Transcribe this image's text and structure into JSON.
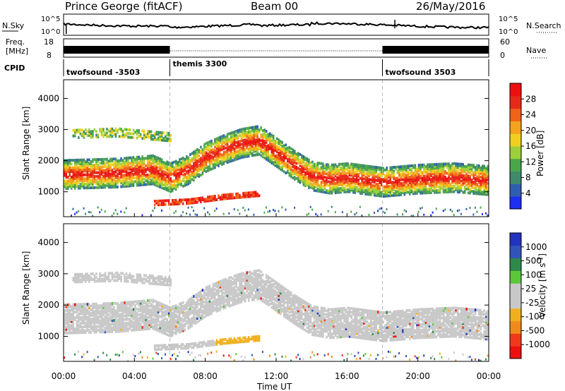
{
  "header": {
    "station": "Prince George (fitACF)",
    "beam": "Beam 00",
    "date": "26/May/2016"
  },
  "summary": {
    "nsky_label": "N.Sky",
    "nsearch_label": "N.Search",
    "freq_label_line1": "Freq.",
    "freq_label_line2": "[MHz]",
    "nave_label": "Nave",
    "cpid_label": "CPID",
    "nsky_ticks": [
      "10^5",
      "10^0"
    ],
    "nsearch_ticks": [
      "10^5",
      "10^0"
    ],
    "freq_ticks": [
      "18",
      "8"
    ],
    "nave_ticks": [
      "60",
      "0"
    ],
    "cpid_segments": [
      {
        "label": "twofsound -3503",
        "start_h": 0,
        "end_h": 6
      },
      {
        "label": "themis 3300",
        "start_h": 6,
        "end_h": 18
      },
      {
        "label": "twofsound 3503",
        "start_h": 18,
        "end_h": 24
      }
    ]
  },
  "chart_data": [
    {
      "type": "heatmap",
      "parameter": "Power",
      "ylabel": "Slant Range [km]",
      "ylim": [
        200,
        4600
      ],
      "yticks": [
        "1000",
        "2000",
        "3000",
        "4000"
      ],
      "xlim_hours": [
        0,
        24
      ],
      "colorbar_label": "Power [dB]",
      "colorbar_ticks": [
        "4",
        "8",
        "12",
        "16",
        "20",
        "24",
        "28"
      ],
      "colors": [
        "#1e2ff0",
        "#2f5fb0",
        "#3f8a6a",
        "#4aa64a",
        "#9ccf3a",
        "#f0cf1e",
        "#f5a21e",
        "#f0621a",
        "#e62a1a",
        "#ee1010"
      ],
      "echo_bands": [
        {
          "name": "main-band",
          "start_h": 0,
          "end_h": 24,
          "range_km": [
            [
              0,
              1600
            ],
            [
              3,
              1650
            ],
            [
              5,
              1750
            ],
            [
              6,
              1500
            ],
            [
              7,
              1750
            ],
            [
              8,
              2150
            ],
            [
              9,
              2400
            ],
            [
              10,
              2600
            ],
            [
              11,
              2700
            ],
            [
              12,
              2300
            ],
            [
              13,
              1900
            ],
            [
              14,
              1550
            ],
            [
              15,
              1450
            ],
            [
              16,
              1500
            ],
            [
              18,
              1350
            ],
            [
              20,
              1450
            ],
            [
              22,
              1500
            ],
            [
              24,
              1400
            ]
          ]
        },
        {
          "name": "lower-patch",
          "start_h": 5,
          "end_h": 11,
          "range_km": [
            [
              5,
              700
            ],
            [
              7,
              750
            ],
            [
              9,
              900
            ],
            [
              11,
              1000
            ]
          ]
        },
        {
          "name": "upper-band",
          "start_h": 0.5,
          "end_h": 6,
          "range_km": [
            [
              0.5,
              2900
            ],
            [
              3,
              2950
            ],
            [
              6,
              2800
            ]
          ]
        }
      ]
    },
    {
      "type": "heatmap",
      "parameter": "Velocity",
      "ylabel": "Slant Range [km]",
      "ylim": [
        200,
        4600
      ],
      "yticks": [
        "1000",
        "2000",
        "3000",
        "4000"
      ],
      "xlabel": "Time UT",
      "xticks": [
        "00:00",
        "04:00",
        "08:00",
        "12:00",
        "16:00",
        "20:00",
        "00:00"
      ],
      "colorbar_label": "Velocity [m s^-1]",
      "colorbar_ticks": [
        "1000",
        "500",
        "100",
        "25",
        "-25",
        "-100",
        "-500",
        "-1000"
      ],
      "colors": [
        "#2233c0",
        "#3055b8",
        "#2e8a4a",
        "#5ac83a",
        "#c8c8c8",
        "#c8c8c8",
        "#f0b01e",
        "#f08a1e",
        "#ee3a1a",
        "#ee1010"
      ],
      "dominant_velocity_band": "ground scatter near 0 m/s (grey)"
    }
  ]
}
